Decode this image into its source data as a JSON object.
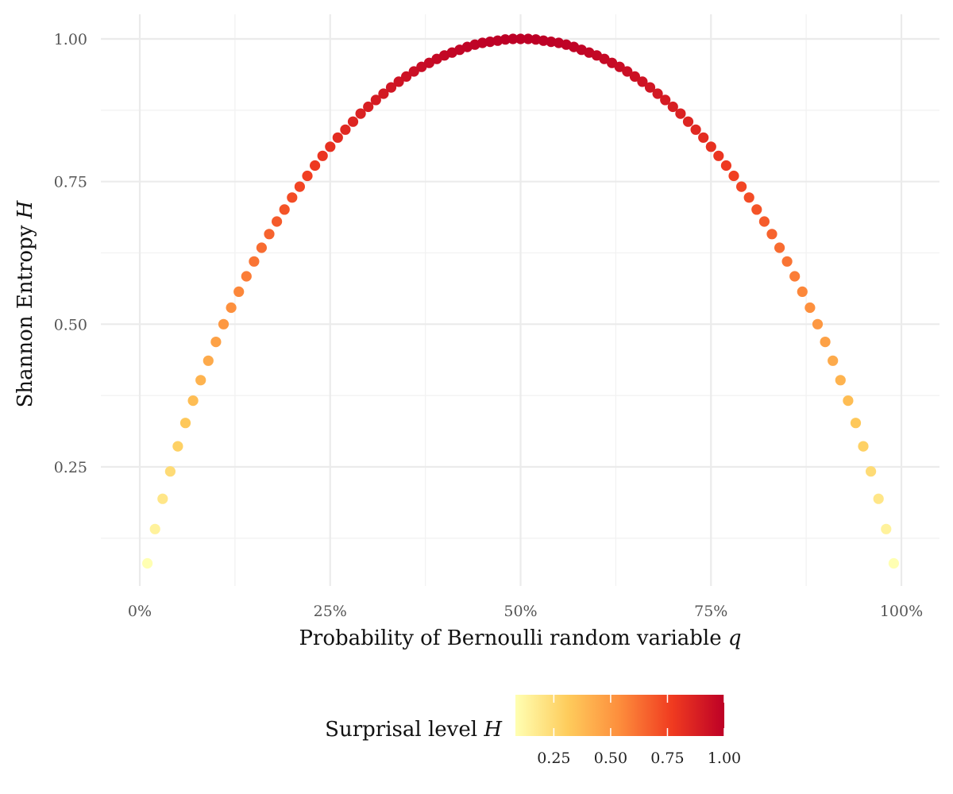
{
  "chart_data": {
    "type": "scatter",
    "x_label": "Probability of Bernoulli random variable ",
    "x_label_var": "q",
    "y_label": "Shannon Entropy ",
    "y_label_var": "H",
    "x_range": [
      0,
      1
    ],
    "y_range": [
      0.08,
      1.0
    ],
    "x_ticks": [
      {
        "value": 0,
        "label": "0%"
      },
      {
        "value": 0.25,
        "label": "25%"
      },
      {
        "value": 0.5,
        "label": "50%"
      },
      {
        "value": 0.75,
        "label": "75%"
      },
      {
        "value": 1,
        "label": "100%"
      }
    ],
    "y_ticks": [
      {
        "value": 0.25,
        "label": "0.25"
      },
      {
        "value": 0.5,
        "label": "0.50"
      },
      {
        "value": 0.75,
        "label": "0.75"
      },
      {
        "value": 1.0,
        "label": "1.00"
      }
    ],
    "x": [
      0.01,
      0.02,
      0.03,
      0.04,
      0.05,
      0.06,
      0.07,
      0.08,
      0.09,
      0.1,
      0.11,
      0.12,
      0.13,
      0.14,
      0.15,
      0.16,
      0.17,
      0.18,
      0.19,
      0.2,
      0.21,
      0.22,
      0.23,
      0.24,
      0.25,
      0.26,
      0.27,
      0.28,
      0.29,
      0.3,
      0.31,
      0.32,
      0.33,
      0.34,
      0.35,
      0.36,
      0.37,
      0.38,
      0.39,
      0.4,
      0.41,
      0.42,
      0.43,
      0.44,
      0.45,
      0.46,
      0.47,
      0.48,
      0.49,
      0.5,
      0.51,
      0.52,
      0.53,
      0.54,
      0.55,
      0.56,
      0.57,
      0.58,
      0.59,
      0.6,
      0.61,
      0.62,
      0.63,
      0.64,
      0.65,
      0.66,
      0.67,
      0.68,
      0.69,
      0.7,
      0.71,
      0.72,
      0.73,
      0.74,
      0.75,
      0.76,
      0.77,
      0.78,
      0.79,
      0.8,
      0.81,
      0.82,
      0.83,
      0.84,
      0.85,
      0.86,
      0.87,
      0.88,
      0.89,
      0.9,
      0.91,
      0.92,
      0.93,
      0.94,
      0.95,
      0.96,
      0.97,
      0.98,
      0.99
    ],
    "y": [
      0.081,
      0.141,
      0.194,
      0.242,
      0.286,
      0.327,
      0.366,
      0.402,
      0.436,
      0.469,
      0.5,
      0.529,
      0.557,
      0.584,
      0.61,
      0.634,
      0.658,
      0.68,
      0.701,
      0.722,
      0.741,
      0.76,
      0.778,
      0.795,
      0.811,
      0.827,
      0.841,
      0.855,
      0.869,
      0.881,
      0.893,
      0.904,
      0.915,
      0.925,
      0.934,
      0.943,
      0.951,
      0.958,
      0.965,
      0.971,
      0.976,
      0.981,
      0.986,
      0.99,
      0.993,
      0.995,
      0.997,
      0.999,
      1.0,
      1.0,
      1.0,
      0.999,
      0.997,
      0.995,
      0.993,
      0.99,
      0.986,
      0.981,
      0.976,
      0.971,
      0.965,
      0.958,
      0.951,
      0.943,
      0.934,
      0.925,
      0.915,
      0.904,
      0.893,
      0.881,
      0.869,
      0.855,
      0.841,
      0.827,
      0.811,
      0.795,
      0.778,
      0.76,
      0.741,
      0.722,
      0.701,
      0.68,
      0.658,
      0.634,
      0.61,
      0.584,
      0.557,
      0.529,
      0.5,
      0.469,
      0.436,
      0.402,
      0.366,
      0.327,
      0.286,
      0.242,
      0.194,
      0.141,
      0.081
    ],
    "color_by": "y",
    "legend": {
      "title": "Surprisal level ",
      "title_var": "H",
      "position": "bottom",
      "range": [
        0.081,
        1.0
      ],
      "ticks": [
        {
          "value": 0.25,
          "label": "0.25"
        },
        {
          "value": 0.5,
          "label": "0.50"
        },
        {
          "value": 0.75,
          "label": "0.75"
        },
        {
          "value": 1.0,
          "label": "1.00"
        }
      ],
      "colors": [
        "#ffffb2",
        "#fecc5c",
        "#fd8d3c",
        "#f03b20",
        "#bd0026"
      ]
    },
    "grid": true
  }
}
